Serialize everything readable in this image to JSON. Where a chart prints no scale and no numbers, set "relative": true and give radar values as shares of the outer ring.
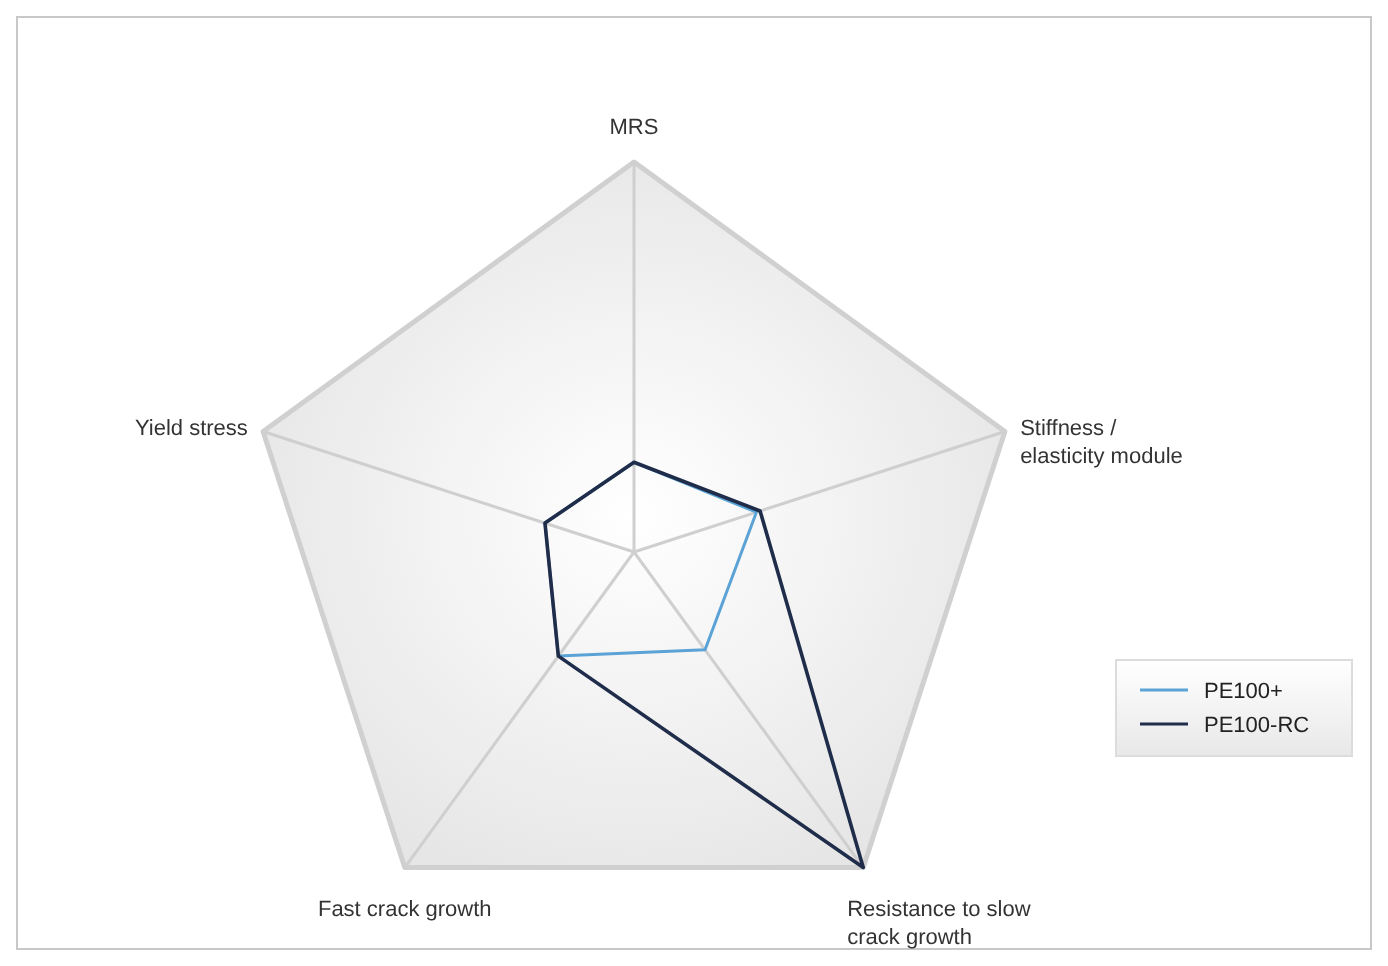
{
  "chart_data": {
    "type": "radar",
    "relative": true,
    "categories": [
      "MRS",
      "Stiffness / elasticity module",
      "Resistance to slow crack growth",
      "Fast crack growth",
      "Yield stress"
    ],
    "series": [
      {
        "name": "PE100+",
        "color": "#5ba3d6",
        "values": [
          0.23,
          0.33,
          0.31,
          0.33,
          0.24
        ]
      },
      {
        "name": "PE100-RC",
        "color": "#1f2d4a",
        "values": [
          0.23,
          0.34,
          1,
          0.33,
          0.24
        ]
      }
    ],
    "legend": "bottom right"
  }
}
